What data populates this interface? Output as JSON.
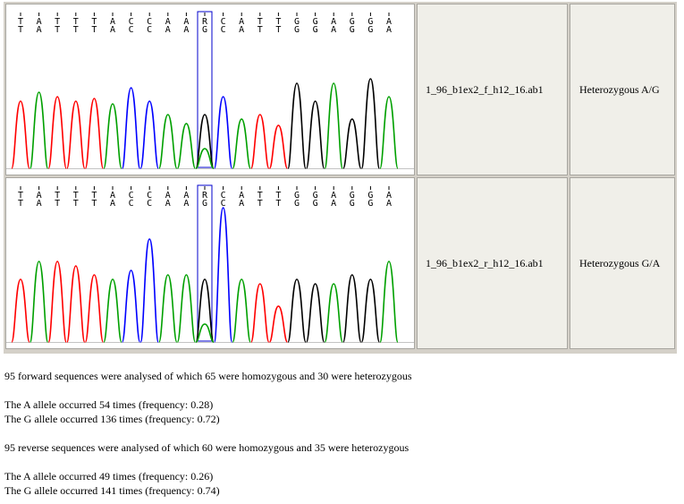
{
  "rows": [
    {
      "bases_top": [
        "T",
        "A",
        "T",
        "T",
        "T",
        "A",
        "C",
        "C",
        "A",
        "A",
        "R",
        "C",
        "A",
        "T",
        "T",
        "G",
        "G",
        "A",
        "G",
        "G",
        "A"
      ],
      "bases_bottom": [
        "T",
        "A",
        "T",
        "T",
        "T",
        "A",
        "C",
        "C",
        "A",
        "A",
        "G",
        "C",
        "A",
        "T",
        "T",
        "G",
        "G",
        "A",
        "G",
        "G",
        "A"
      ],
      "highlight_index": 10,
      "filename": "1_96_b1ex2_f_h12_16.ab1",
      "result": "Heterozygous A/G"
    },
    {
      "bases_top": [
        "T",
        "A",
        "T",
        "T",
        "T",
        "A",
        "C",
        "C",
        "A",
        "A",
        "R",
        "C",
        "A",
        "T",
        "T",
        "G",
        "G",
        "A",
        "G",
        "G",
        "A"
      ],
      "bases_bottom": [
        "T",
        "A",
        "T",
        "T",
        "T",
        "A",
        "C",
        "C",
        "A",
        "A",
        "G",
        "C",
        "A",
        "T",
        "T",
        "G",
        "G",
        "A",
        "G",
        "G",
        "A"
      ],
      "highlight_index": 10,
      "filename": "1_96_b1ex2_r_h12_16.ab1",
      "result": "Heterozygous G/A"
    }
  ],
  "colors": {
    "A": "#00a000",
    "C": "#0000ff",
    "G": "#000000",
    "T": "#ff0000",
    "highlight_box": "#0000cc"
  },
  "summary": {
    "forward_line": "95 forward sequences were analysed of which 65 were homozygous and 30 were heterozygous",
    "forward_a": "The A allele occurred 54 times (frequency: 0.28)",
    "forward_g": "The G allele occurred 136 times (frequency: 0.72)",
    "reverse_line": "95 reverse sequences were analysed of which 60 were homozygous and 35 were heterozygous",
    "reverse_a": "The A allele occurred 49 times (frequency: 0.26)",
    "reverse_g": "The G allele occurred 141 times (frequency: 0.74)"
  }
}
